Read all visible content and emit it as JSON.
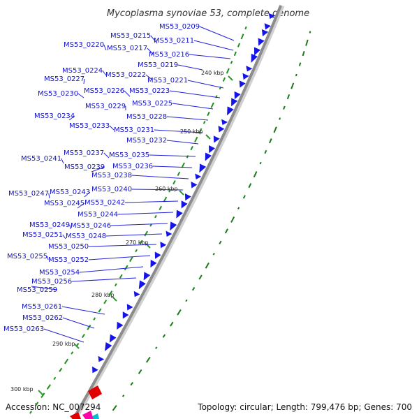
{
  "title": "Mycoplasma synoviae 53, complete genome",
  "accession": "Accession: NC_007294",
  "summary": "Topology: circular; Length: 799,476 bp; Genes: 700",
  "colors": {
    "backbone": "#8c8c8c",
    "gene_forward": "#1414e6",
    "gene_accent": "#e00000",
    "gene_accent2": "#ff00aa",
    "gene_accent3": "#00bcd4",
    "label_line": "#2323d8",
    "label_text": "#1010c8",
    "gc_plus": "#1f8f1f",
    "gc_minus": "#1a7a1a",
    "tick_mark": "#22a022"
  },
  "ticks": [
    "240 kbp",
    "250 kbp",
    "260 kbp",
    "270 kbp",
    "280 kbp",
    "290 kbp",
    "300 kbp"
  ],
  "genes": [
    "MS53_0209",
    "MS53_0211",
    "MS53_0215",
    "MS53_0216",
    "MS53_0217",
    "MS53_0219",
    "MS53_0220",
    "MS53_0221",
    "MS53_0222",
    "MS53_0223",
    "MS53_0224",
    "MS53_0225",
    "MS53_0226",
    "MS53_0227",
    "MS53_0228",
    "MS53_0229",
    "MS53_0230",
    "MS53_0231",
    "MS53_0232",
    "MS53_0233",
    "MS53_0234",
    "MS53_0235",
    "MS53_0236",
    "MS53_0237",
    "MS53_0238",
    "MS53_0239",
    "MS53_0240",
    "MS53_0241",
    "MS53_0242",
    "MS53_0243",
    "MS53_0244",
    "MS53_0245",
    "MS53_0246",
    "MS53_0247",
    "MS53_0248",
    "MS53_0249",
    "MS53_0250",
    "MS53_0251",
    "MS53_0252",
    "MS53_0254",
    "MS53_0255",
    "MS53_0256",
    "MS53_0259",
    "MS53_0261",
    "MS53_0262",
    "MS53_0263"
  ]
}
